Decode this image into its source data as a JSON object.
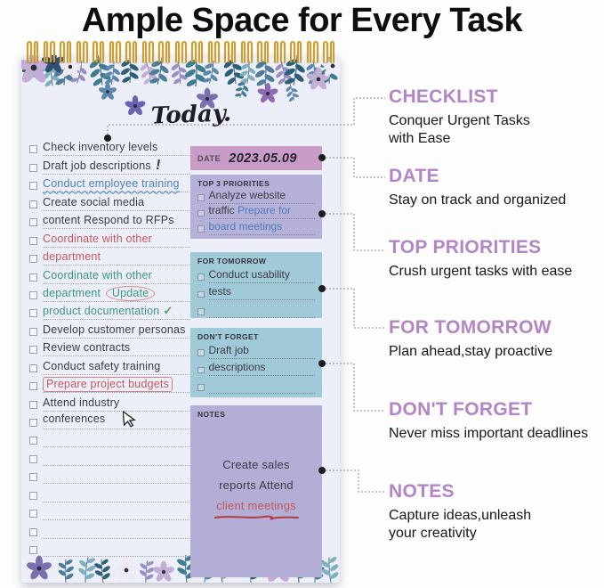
{
  "title": "Ample Space for Every Task",
  "notepad": {
    "header": "Today.",
    "checklist": [
      {
        "segs": [
          {
            "t": "Check inventory levels",
            "c": "dark"
          }
        ]
      },
      {
        "segs": [
          {
            "t": "Draft job descriptions",
            "c": "dark"
          },
          {
            "t": "!",
            "c": "dark",
            "cls": "exclaim"
          }
        ]
      },
      {
        "segs": [
          {
            "t": "Conduct employee training",
            "c": "blue",
            "cls": "wavy"
          }
        ]
      },
      {
        "segs": [
          {
            "t": "Create social media",
            "c": "dark"
          }
        ]
      },
      {
        "segs": [
          {
            "t": "content Respond to RFPs",
            "c": "dark"
          }
        ]
      },
      {
        "segs": [
          {
            "t": "Coordinate with other",
            "c": "red"
          }
        ]
      },
      {
        "segs": [
          {
            "t": "department",
            "c": "red"
          }
        ]
      },
      {
        "segs": [
          {
            "t": "Coordinate with other",
            "c": "teal"
          }
        ]
      },
      {
        "segs": [
          {
            "t": "department ",
            "c": "teal"
          },
          {
            "t": "Update",
            "c": "teal",
            "cls": "circled"
          }
        ]
      },
      {
        "segs": [
          {
            "t": "product documentation",
            "c": "teal"
          },
          {
            "t": "✓",
            "c": "green",
            "cls": "check"
          }
        ]
      },
      {
        "segs": [
          {
            "t": "Develop customer personas",
            "c": "dark"
          }
        ]
      },
      {
        "segs": [
          {
            "t": "Review contracts",
            "c": "dark"
          }
        ]
      },
      {
        "segs": [
          {
            "t": "Conduct safety training",
            "c": "dark"
          }
        ]
      },
      {
        "segs": [
          {
            "t": "Prepare project budgets",
            "c": "red"
          }
        ],
        "boxed": true
      },
      {
        "segs": [
          {
            "t": "Attend industry",
            "c": "dark"
          }
        ]
      },
      {
        "segs": [
          {
            "t": "conferences",
            "c": "dark"
          }
        ],
        "cursor": true
      },
      {},
      {},
      {},
      {},
      {},
      {},
      {}
    ],
    "date": {
      "label": "DATE",
      "value": "2023.05.09"
    },
    "sections": [
      {
        "label": "TOP 3 PRIORITIES",
        "rows": [
          [
            {
              "t": "Analyze website",
              "c": "dark"
            }
          ],
          [
            {
              "t": "traffic ",
              "c": "dark"
            },
            {
              "t": "Prepare for",
              "c": "blue"
            }
          ],
          [
            {
              "t": "board meetings",
              "c": "blue"
            }
          ]
        ]
      },
      {
        "label": "FOR TOMORROW",
        "rows": [
          [
            {
              "t": "Conduct usability",
              "c": "dark"
            }
          ],
          [
            {
              "t": "tests",
              "c": "dark"
            }
          ],
          []
        ]
      },
      {
        "label": "DON'T FORGET",
        "rows": [
          [
            {
              "t": "Draft job",
              "c": "dark"
            }
          ],
          [
            {
              "t": "descriptions",
              "c": "dark"
            }
          ],
          []
        ]
      }
    ],
    "notes": {
      "label": "NOTES",
      "lines": [
        {
          "t": "Create sales",
          "c": "dark"
        },
        {
          "t": "reports Attend",
          "c": "dark"
        },
        {
          "t": "client meetings",
          "c": "red",
          "underline": true
        }
      ]
    }
  },
  "annotations": [
    {
      "heading": "CHECKLIST",
      "desc": "Conquer Urgent Tasks\nwith Ease"
    },
    {
      "heading": "DATE",
      "desc": "Stay on track and organized"
    },
    {
      "heading": "TOP PRIORITIES",
      "desc": "Crush urgent tasks with ease"
    },
    {
      "heading": "FOR TOMORROW",
      "desc": "Plan ahead,stay proactive"
    },
    {
      "heading": "DON'T FORGET",
      "desc": "Never miss important deadlines"
    },
    {
      "heading": "NOTES",
      "desc": "Capture ideas,unleash\nyour creativity"
    }
  ],
  "icons": {
    "checkbox-icon": "empty square",
    "cursor-icon": "mouse arrow cursor",
    "checkmark-icon": "✓",
    "exclamation-icon": "!"
  },
  "colors": {
    "accent_purple": "#b286c4",
    "date_bar": "#c89cc6",
    "priorities_box": "#b6b1d8",
    "teal_box": "#a0cad7",
    "notes_box": "#b3aed6",
    "handwriting_dark": "#3b3b45",
    "handwriting_blue": "#4b7db8",
    "handwriting_red": "#c4595c",
    "handwriting_teal": "#3f948a",
    "spiral_gold": "#cf9e2e"
  }
}
